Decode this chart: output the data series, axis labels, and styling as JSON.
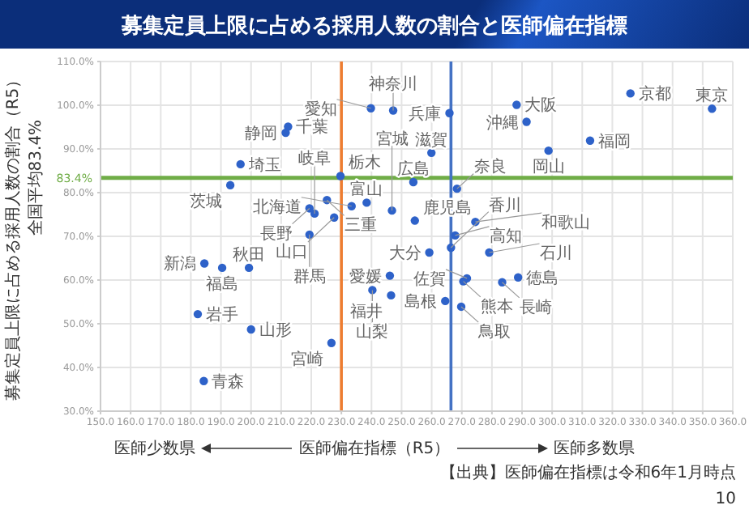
{
  "chart_data": {
    "type": "scatter",
    "title": "募集定員上限に占める採用人数の割合と医師偏在指標",
    "xlabel": "医師偏在指標（R5）",
    "ylabel": "募集定員上限に占める採用人数の割合（R5）",
    "x": [
      353.1,
      326.0,
      288.2,
      291.5,
      312.6,
      298.8,
      265.9,
      259.9,
      239.8,
      247.2,
      212.3,
      211.5,
      196.5,
      193.1,
      229.7,
      253.9,
      268.4,
      225.2,
      238.4,
      233.4,
      246.8,
      219.4,
      221.1,
      227.6,
      254.4,
      274.5,
      219.4,
      267.8,
      266.4,
      259.2,
      279.1,
      184.5,
      190.4,
      199.3,
      246.1,
      288.7,
      271.7,
      270.5,
      283.4,
      240.3,
      246.5,
      264.5,
      269.8,
      182.3,
      200.0,
      226.7,
      184.3
    ],
    "values": [
      99.2,
      102.7,
      100.1,
      96.2,
      91.9,
      89.6,
      98.2,
      89.1,
      99.3,
      98.8,
      95.1,
      93.7,
      86.5,
      81.7,
      83.8,
      82.4,
      80.9,
      78.3,
      77.7,
      76.9,
      75.9,
      76.4,
      75.2,
      74.3,
      73.6,
      73.3,
      70.4,
      70.2,
      67.4,
      66.3,
      66.3,
      63.8,
      62.8,
      62.8,
      61.0,
      60.6,
      60.4,
      59.7,
      59.5,
      57.7,
      56.5,
      55.2,
      53.9,
      52.2,
      48.7,
      45.6,
      36.9
    ],
    "color": "#2e62c9",
    "marker": "circle",
    "grid": true,
    "xlim": [
      150,
      360
    ],
    "xticks": [
      {
        "value": 150,
        "label": "150.0"
      },
      {
        "value": 160,
        "label": "160.0"
      },
      {
        "value": 170,
        "label": "170.0"
      },
      {
        "value": 180,
        "label": "180.0"
      },
      {
        "value": 190,
        "label": "190.0"
      },
      {
        "value": 200,
        "label": "200.0"
      },
      {
        "value": 210,
        "label": "210.0"
      },
      {
        "value": 220,
        "label": "220.0"
      },
      {
        "value": 230,
        "label": "230.0"
      },
      {
        "value": 240,
        "label": "240.0"
      },
      {
        "value": 250,
        "label": "250.0"
      },
      {
        "value": 260,
        "label": "260.0"
      },
      {
        "value": 270,
        "label": "270.0"
      },
      {
        "value": 280,
        "label": "280.0"
      },
      {
        "value": 290,
        "label": "290.0"
      },
      {
        "value": 300,
        "label": "300.0"
      },
      {
        "value": 310,
        "label": "310.0"
      },
      {
        "value": 320,
        "label": "320.0"
      },
      {
        "value": 330,
        "label": "330.0"
      },
      {
        "value": 340,
        "label": "340.0"
      },
      {
        "value": 350,
        "label": "350.0"
      },
      {
        "value": 360,
        "label": "360.0"
      }
    ],
    "ylim": [
      30,
      110
    ],
    "yticks": [
      {
        "value": 30,
        "label": "30.0%"
      },
      {
        "value": 40,
        "label": "40.0%"
      },
      {
        "value": 50,
        "label": "50.0%"
      },
      {
        "value": 60,
        "label": "60.0%"
      },
      {
        "value": 70,
        "label": "70.0%"
      },
      {
        "value": 80,
        "label": "80.0%"
      },
      {
        "value": 90,
        "label": "90.0%"
      },
      {
        "value": 100,
        "label": "100.0%"
      },
      {
        "value": 110,
        "label": "110.0%"
      }
    ],
    "ref_lines": [
      {
        "axis": "y",
        "value": 83.4,
        "label": "83.4%",
        "color": "#70ad47"
      },
      {
        "axis": "x",
        "value": 230,
        "color": "#ed7d31"
      },
      {
        "axis": "x",
        "value": 266.4,
        "color": "#4472c4"
      }
    ],
    "annotations": [
      {
        "text": "東京",
        "x": 353.1,
        "y": 99.2
      },
      {
        "text": "京都",
        "x": 326.0,
        "y": 102.7
      },
      {
        "text": "大阪",
        "x": 288.2,
        "y": 100.1
      },
      {
        "text": "沖縄",
        "x": 291.5,
        "y": 96.2
      },
      {
        "text": "福岡",
        "x": 312.6,
        "y": 91.9
      },
      {
        "text": "岡山",
        "x": 298.8,
        "y": 89.6
      },
      {
        "text": "兵庫",
        "x": 265.9,
        "y": 98.2
      },
      {
        "text": "滋賀",
        "x": 259.9,
        "y": 89.1
      },
      {
        "text": "愛知",
        "x": 239.8,
        "y": 99.3
      },
      {
        "text": "神奈川",
        "x": 247.2,
        "y": 98.8
      },
      {
        "text": "千葉",
        "x": 212.3,
        "y": 95.1
      },
      {
        "text": "静岡",
        "x": 211.5,
        "y": 93.7
      },
      {
        "text": "埼玉",
        "x": 196.5,
        "y": 86.5
      },
      {
        "text": "茨城",
        "x": 193.1,
        "y": 81.7
      },
      {
        "text": "栃木",
        "x": 229.7,
        "y": 83.8
      },
      {
        "text": "広島",
        "x": 253.9,
        "y": 82.4
      },
      {
        "text": "奈良",
        "x": 268.4,
        "y": 80.9
      },
      {
        "text": "三重",
        "x": 225.2,
        "y": 78.3
      },
      {
        "text": "富山",
        "x": 238.4,
        "y": 77.7
      },
      {
        "text": "北海道",
        "x": 233.4,
        "y": 76.9
      },
      {
        "text": "宮城",
        "x": 246.8,
        "y": 75.9
      },
      {
        "text": "長野",
        "x": 219.4,
        "y": 76.4
      },
      {
        "text": "岐阜",
        "x": 221.1,
        "y": 75.2
      },
      {
        "text": "山口",
        "x": 227.6,
        "y": 74.3
      },
      {
        "text": "鹿児島",
        "x": 254.4,
        "y": 73.6
      },
      {
        "text": "和歌山",
        "x": 274.5,
        "y": 73.3
      },
      {
        "text": "群馬",
        "x": 219.4,
        "y": 70.4
      },
      {
        "text": "高知",
        "x": 267.8,
        "y": 70.2
      },
      {
        "text": "香川",
        "x": 266.4,
        "y": 67.4
      },
      {
        "text": "大分",
        "x": 259.2,
        "y": 66.3
      },
      {
        "text": "石川",
        "x": 279.1,
        "y": 66.3
      },
      {
        "text": "新潟",
        "x": 184.5,
        "y": 63.8
      },
      {
        "text": "福島",
        "x": 190.4,
        "y": 62.8
      },
      {
        "text": "秋田",
        "x": 199.3,
        "y": 62.8
      },
      {
        "text": "愛媛",
        "x": 246.1,
        "y": 61.0
      },
      {
        "text": "徳島",
        "x": 288.7,
        "y": 60.6
      },
      {
        "text": "佐賀",
        "x": 271.7,
        "y": 60.4
      },
      {
        "text": "熊本",
        "x": 270.5,
        "y": 59.7
      },
      {
        "text": "長崎",
        "x": 283.4,
        "y": 59.5
      },
      {
        "text": "山梨",
        "x": 240.3,
        "y": 57.7
      },
      {
        "text": "福井",
        "x": 246.5,
        "y": 56.5
      },
      {
        "text": "島根",
        "x": 264.5,
        "y": 55.2
      },
      {
        "text": "鳥取",
        "x": 269.8,
        "y": 53.9
      },
      {
        "text": "岩手",
        "x": 182.3,
        "y": 52.2
      },
      {
        "text": "山形",
        "x": 200.0,
        "y": 48.7
      },
      {
        "text": "宮崎",
        "x": 226.7,
        "y": 45.6
      },
      {
        "text": "青森",
        "x": 184.3,
        "y": 36.9
      },
      "全国平均83.4%",
      "医師少数県",
      "医師多数県",
      "【出典】医師偏在指標は令和6年1月時点",
      "10"
    ]
  }
}
